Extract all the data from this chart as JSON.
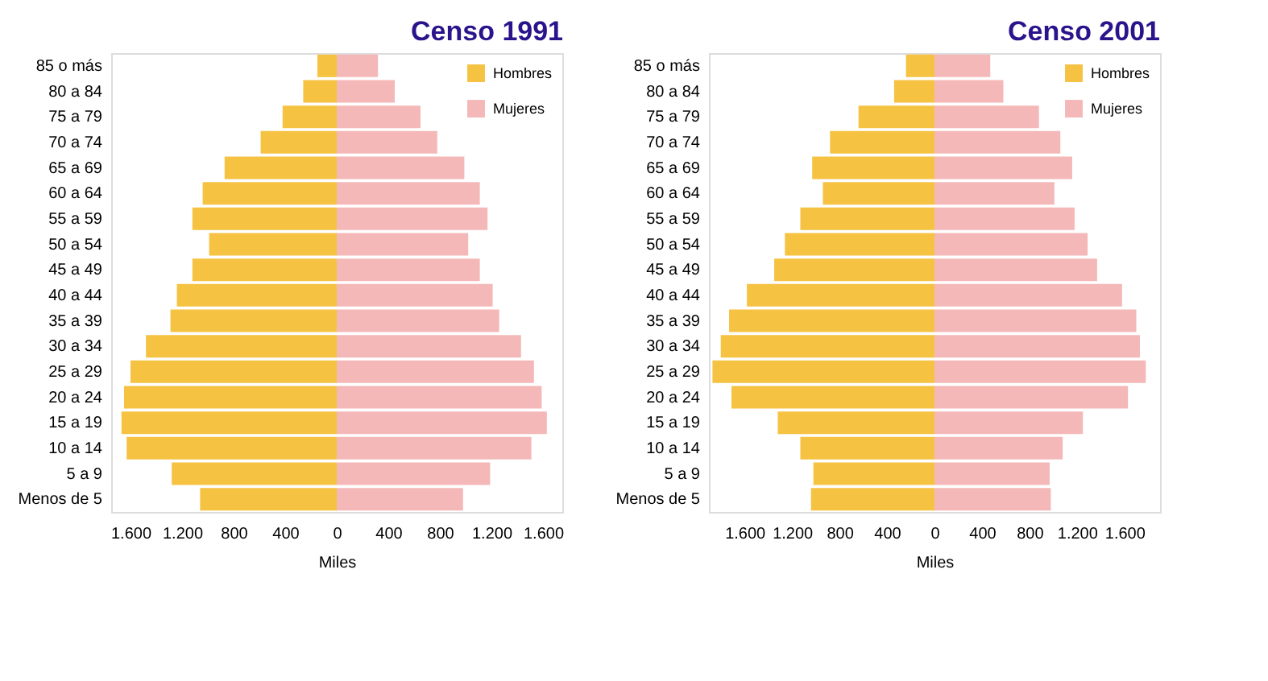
{
  "chart_data": [
    {
      "type": "bar",
      "orientation": "horizontal",
      "stacked": true,
      "title": "Censo 1991",
      "xlabel": "Miles",
      "legend": "top right",
      "grid": false,
      "categories": [
        "85 o más",
        "80 a 84",
        "75 a 79",
        "70 a 74",
        "65 a 69",
        "60 a 64",
        "55 a 59",
        "50 a 54",
        "45 a 49",
        "40 a 44",
        "35 a 39",
        "30 a 34",
        "25 a 29",
        "20 a 24",
        "15 a 19",
        "10 a 14",
        "5 a 9",
        "Menos de 5"
      ],
      "xlim": [
        -1750,
        1750
      ],
      "xticks": [
        {
          "value": -1600,
          "label": "1.600"
        },
        {
          "value": -1200,
          "label": "1.200"
        },
        {
          "value": -800,
          "label": "800"
        },
        {
          "value": -400,
          "label": "400"
        },
        0,
        400,
        800,
        {
          "value": 1200,
          "label": "1.200"
        },
        {
          "value": 1600,
          "label": "1.600"
        }
      ],
      "series": [
        {
          "name": "Hombres",
          "color": "#f5c242",
          "values": [
            -150,
            -260,
            -420,
            -590,
            -870,
            -1040,
            -1120,
            -990,
            -1120,
            -1240,
            -1290,
            -1480,
            -1600,
            -1650,
            -1670,
            -1630,
            -1280,
            -1060
          ]
        },
        {
          "name": "Mujeres",
          "color": "#f5b8b8",
          "values": [
            320,
            450,
            650,
            780,
            990,
            1110,
            1170,
            1020,
            1110,
            1210,
            1260,
            1430,
            1530,
            1590,
            1630,
            1510,
            1190,
            980
          ]
        }
      ]
    },
    {
      "type": "bar",
      "orientation": "horizontal",
      "stacked": true,
      "title": "Censo 2001",
      "xlabel": "Miles",
      "legend": "top right",
      "grid": false,
      "categories": [
        "85 o más",
        "80 a 84",
        "75 a 79",
        "70 a 74",
        "65 a 69",
        "60 a 64",
        "55 a 59",
        "50 a 54",
        "45 a 49",
        "40 a 44",
        "35 a 39",
        "30 a 34",
        "25 a 29",
        "20 a 24",
        "15 a 19",
        "10 a 14",
        "5 a 9",
        "Menos de 5"
      ],
      "xlim": [
        -1900,
        1900
      ],
      "xticks": [
        {
          "value": -1600,
          "label": "1.600"
        },
        {
          "value": -1200,
          "label": "1.200"
        },
        {
          "value": -800,
          "label": "800"
        },
        {
          "value": -400,
          "label": "400"
        },
        0,
        400,
        800,
        {
          "value": 1200,
          "label": "1.200"
        },
        {
          "value": 1600,
          "label": "1.600"
        }
      ],
      "series": [
        {
          "name": "Hombres",
          "color": "#f5c242",
          "values": [
            -240,
            -340,
            -640,
            -880,
            -1030,
            -940,
            -1130,
            -1260,
            -1350,
            -1580,
            -1730,
            -1800,
            -1870,
            -1710,
            -1320,
            -1130,
            -1020,
            -1040
          ]
        },
        {
          "name": "Mujeres",
          "color": "#f5b8b8",
          "values": [
            470,
            580,
            880,
            1060,
            1160,
            1010,
            1180,
            1290,
            1370,
            1580,
            1700,
            1730,
            1780,
            1630,
            1250,
            1080,
            970,
            980
          ]
        }
      ]
    }
  ]
}
